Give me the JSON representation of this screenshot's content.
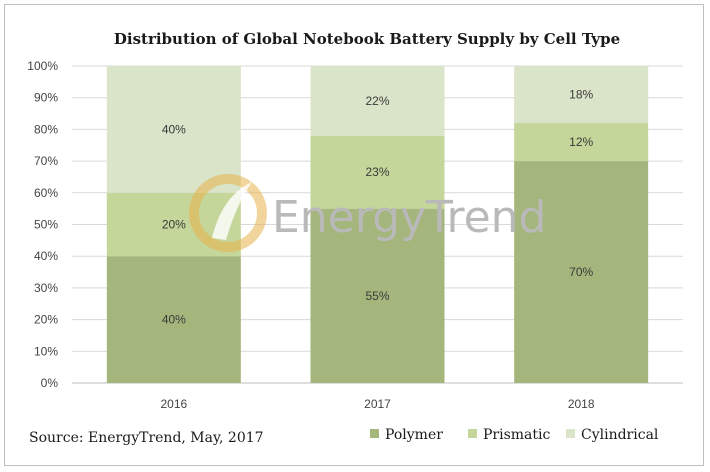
{
  "colors": {
    "polymer": "#a4b67c",
    "prismatic": "#c5d69a",
    "cylindrical": "#dae4c9",
    "grid": "#d9d9d9",
    "axis": "#bfbfbf"
  },
  "watermark": {
    "text": "EnergyTrend"
  },
  "source": "Source: EnergyTrend, May, 2017",
  "chart_data": {
    "type": "bar",
    "stacked": true,
    "title": "Distribution of Global Notebook Battery Supply by Cell Type",
    "xlabel": "",
    "ylabel": "",
    "categories": [
      "2016",
      "2017",
      "2018"
    ],
    "yticks": [
      "0%",
      "10%",
      "20%",
      "30%",
      "40%",
      "50%",
      "60%",
      "70%",
      "80%",
      "90%",
      "100%"
    ],
    "ylim": [
      0,
      100
    ],
    "grid": true,
    "legend_position": "bottom-right",
    "series": [
      {
        "name": "Polymer",
        "values": [
          40,
          55,
          70
        ],
        "labels": [
          "40%",
          "55%",
          "70%"
        ]
      },
      {
        "name": "Prismatic",
        "values": [
          20,
          23,
          12
        ],
        "labels": [
          "20%",
          "23%",
          "12%"
        ]
      },
      {
        "name": "Cylindrical",
        "values": [
          40,
          22,
          18
        ],
        "labels": [
          "40%",
          "22%",
          "18%"
        ]
      }
    ]
  }
}
